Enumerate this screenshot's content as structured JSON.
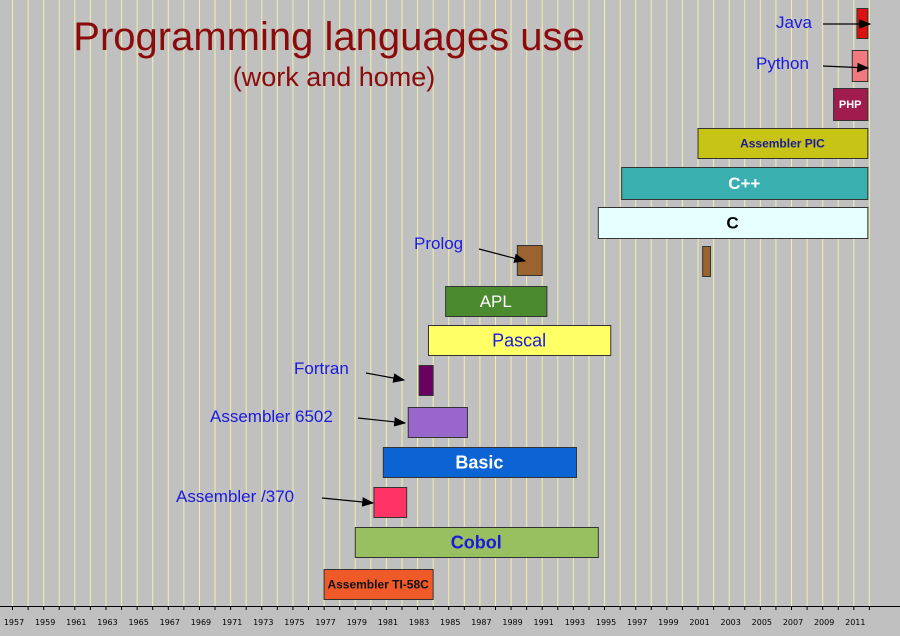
{
  "chart_data": {
    "type": "bar",
    "title": "Programming languages use",
    "subtitle": "(work and home)",
    "x_ticks": [
      "1957",
      "1959",
      "1961",
      "1963",
      "1965",
      "1967",
      "1969",
      "1971",
      "1973",
      "1975",
      "1977",
      "1979",
      "1981",
      "1983",
      "1985",
      "1987",
      "1989",
      "1991",
      "1993",
      "1995",
      "1997",
      "1999",
      "2001",
      "2003",
      "2005",
      "2007",
      "2009",
      "2011"
    ],
    "xlim": [
      1957,
      2012.5
    ],
    "grid": "vertical, one line per year",
    "series": [
      {
        "label": "Java",
        "start": 2011.2,
        "end": 2011.9,
        "color": "#dd1111",
        "label_inside": false,
        "label_color": "#1a1add"
      },
      {
        "label": "Python",
        "start": 2010.9,
        "end": 2011.9,
        "color": "#f07a80",
        "label_inside": false,
        "label_color": "#1a1add"
      },
      {
        "label": "PHP",
        "start": 2009.7,
        "end": 2011.9,
        "color": "#a01c4c",
        "label_inside": true,
        "label_color": "#ffffff",
        "bold": true
      },
      {
        "label": "Assembler PIC",
        "start": 2001.0,
        "end": 2011.9,
        "color": "#c8c416",
        "label_inside": true,
        "label_color": "#1a1a99",
        "bold": true
      },
      {
        "label": "C++",
        "start": 1996.1,
        "end": 2011.9,
        "color": "#3aafaf",
        "label_inside": true,
        "label_color": "#ffffff",
        "bold": true
      },
      {
        "label": "C",
        "start": 1994.6,
        "end": 2011.9,
        "color": "#e6ffff",
        "label_inside": true,
        "label_color": "#000000",
        "bold": true
      },
      {
        "label": "",
        "start": 2001.3,
        "end": 2001.8,
        "color": "#9b6330",
        "label_inside": false
      },
      {
        "label": "Prolog",
        "start": 1989.4,
        "end": 1991.0,
        "color": "#9b6330",
        "label_inside": false,
        "label_color": "#1a1add"
      },
      {
        "label": "APL",
        "start": 1984.8,
        "end": 1991.3,
        "color": "#4c8a30",
        "label_inside": true,
        "label_color": "#ffffff",
        "bold": false
      },
      {
        "label": "Pascal",
        "start": 1983.7,
        "end": 1995.4,
        "color": "#ffff66",
        "label_inside": true,
        "label_color": "#1a1add",
        "bold": false
      },
      {
        "label": "Fortran",
        "start": 1983.1,
        "end": 1984.0,
        "color": "#6a0060",
        "label_inside": false,
        "label_color": "#1a1add"
      },
      {
        "label": "Assembler 6502",
        "start": 1982.4,
        "end": 1986.2,
        "color": "#9966cc",
        "label_inside": false,
        "label_color": "#1a1add"
      },
      {
        "label": "Basic",
        "start": 1980.8,
        "end": 1993.2,
        "color": "#0c63d4",
        "label_inside": true,
        "label_color": "#ffffff",
        "bold": true
      },
      {
        "label": "Assembler /370",
        "start": 1980.2,
        "end": 1982.3,
        "color": "#ff3366",
        "label_inside": false,
        "label_color": "#1a1add"
      },
      {
        "label": "Cobol",
        "start": 1979.0,
        "end": 1994.6,
        "color": "#99c060",
        "label_inside": true,
        "label_color": "#1a1add",
        "bold": true
      },
      {
        "label": "Assembler TI-58C",
        "start": 1977.0,
        "end": 1984.0,
        "color": "#f05a28",
        "label_inside": true,
        "label_color": "#111111",
        "bold": true
      }
    ]
  }
}
